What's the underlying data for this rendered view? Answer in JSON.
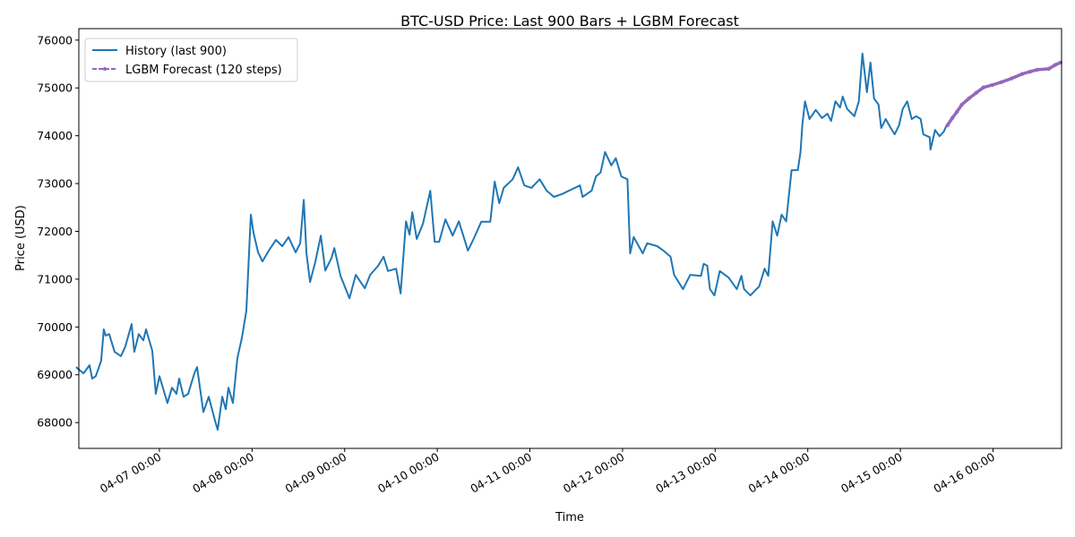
{
  "chart_data": {
    "type": "line",
    "title": "BTC-USD Price: Last 900 Bars + LGBM Forecast",
    "xlabel": "Time",
    "ylabel": "Price (USD)",
    "x_unit": "days since 04-07 00:00",
    "xlim": [
      -0.87,
      9.74
    ],
    "ylim": [
      67460,
      76240
    ],
    "grid": false,
    "legend_position": "top-left",
    "x_ticks": [
      {
        "value": 0,
        "label": "04-07 00:00"
      },
      {
        "value": 1,
        "label": "04-08 00:00"
      },
      {
        "value": 2,
        "label": "04-09 00:00"
      },
      {
        "value": 3,
        "label": "04-10 00:00"
      },
      {
        "value": 4,
        "label": "04-11 00:00"
      },
      {
        "value": 5,
        "label": "04-12 00:00"
      },
      {
        "value": 6,
        "label": "04-13 00:00"
      },
      {
        "value": 7,
        "label": "04-14 00:00"
      },
      {
        "value": 8,
        "label": "04-15 00:00"
      },
      {
        "value": 9,
        "label": "04-16 00:00"
      }
    ],
    "y_ticks": [
      {
        "value": 68000,
        "label": "68000"
      },
      {
        "value": 69000,
        "label": "69000"
      },
      {
        "value": 70000,
        "label": "70000"
      },
      {
        "value": 71000,
        "label": "71000"
      },
      {
        "value": 72000,
        "label": "72000"
      },
      {
        "value": 73000,
        "label": "73000"
      },
      {
        "value": 74000,
        "label": "74000"
      },
      {
        "value": 75000,
        "label": "75000"
      },
      {
        "value": 76000,
        "label": "76000"
      }
    ],
    "series": [
      {
        "name": "History (last 900)",
        "color": "#1f77b4",
        "style": "solid",
        "points": [
          [
            -0.9,
            69160
          ],
          [
            -0.82,
            69030
          ],
          [
            -0.755,
            69200
          ],
          [
            -0.726,
            68920
          ],
          [
            -0.687,
            68970
          ],
          [
            -0.629,
            69290
          ],
          [
            -0.6,
            69950
          ],
          [
            -0.581,
            69820
          ],
          [
            -0.542,
            69850
          ],
          [
            -0.484,
            69480
          ],
          [
            -0.416,
            69390
          ],
          [
            -0.368,
            69590
          ],
          [
            -0.3,
            70060
          ],
          [
            -0.271,
            69480
          ],
          [
            -0.223,
            69850
          ],
          [
            -0.174,
            69720
          ],
          [
            -0.145,
            69950
          ],
          [
            -0.077,
            69500
          ],
          [
            -0.039,
            68600
          ],
          [
            0,
            68970
          ],
          [
            0.048,
            68660
          ],
          [
            0.087,
            68410
          ],
          [
            0.136,
            68730
          ],
          [
            0.184,
            68600
          ],
          [
            0.213,
            68920
          ],
          [
            0.261,
            68540
          ],
          [
            0.31,
            68600
          ],
          [
            0.378,
            69030
          ],
          [
            0.407,
            69160
          ],
          [
            0.474,
            68220
          ],
          [
            0.532,
            68540
          ],
          [
            0.6,
            68040
          ],
          [
            0.629,
            67850
          ],
          [
            0.678,
            68540
          ],
          [
            0.716,
            68280
          ],
          [
            0.745,
            68730
          ],
          [
            0.794,
            68410
          ],
          [
            0.842,
            69350
          ],
          [
            0.891,
            69780
          ],
          [
            0.939,
            70340
          ],
          [
            0.987,
            72350
          ],
          [
            1.016,
            71970
          ],
          [
            1.065,
            71560
          ],
          [
            1.113,
            71370
          ],
          [
            1.181,
            71600
          ],
          [
            1.258,
            71820
          ],
          [
            1.326,
            71690
          ],
          [
            1.394,
            71880
          ],
          [
            1.471,
            71560
          ],
          [
            1.52,
            71750
          ],
          [
            1.559,
            72660
          ],
          [
            1.588,
            71540
          ],
          [
            1.626,
            70940
          ],
          [
            1.684,
            71370
          ],
          [
            1.742,
            71910
          ],
          [
            1.791,
            71180
          ],
          [
            1.859,
            71450
          ],
          [
            1.888,
            71650
          ],
          [
            1.955,
            71070
          ],
          [
            2.052,
            70600
          ],
          [
            2.12,
            71090
          ],
          [
            2.217,
            70810
          ],
          [
            2.275,
            71090
          ],
          [
            2.362,
            71280
          ],
          [
            2.42,
            71470
          ],
          [
            2.468,
            71170
          ],
          [
            2.556,
            71220
          ],
          [
            2.604,
            70700
          ],
          [
            2.662,
            72210
          ],
          [
            2.701,
            71930
          ],
          [
            2.73,
            72400
          ],
          [
            2.778,
            71840
          ],
          [
            2.846,
            72160
          ],
          [
            2.924,
            72850
          ],
          [
            2.972,
            71780
          ],
          [
            3.02,
            71780
          ],
          [
            3.088,
            72250
          ],
          [
            3.166,
            71910
          ],
          [
            3.233,
            72210
          ],
          [
            3.33,
            71600
          ],
          [
            3.388,
            71820
          ],
          [
            3.475,
            72200
          ],
          [
            3.572,
            72200
          ],
          [
            3.62,
            73040
          ],
          [
            3.669,
            72590
          ],
          [
            3.717,
            72910
          ],
          [
            3.814,
            73090
          ],
          [
            3.872,
            73340
          ],
          [
            3.94,
            72960
          ],
          [
            4.017,
            72910
          ],
          [
            4.105,
            73090
          ],
          [
            4.182,
            72850
          ],
          [
            4.259,
            72720
          ],
          [
            4.347,
            72780
          ],
          [
            4.443,
            72870
          ],
          [
            4.54,
            72960
          ],
          [
            4.569,
            72720
          ],
          [
            4.666,
            72850
          ],
          [
            4.714,
            73150
          ],
          [
            4.763,
            73230
          ],
          [
            4.811,
            73660
          ],
          [
            4.879,
            73380
          ],
          [
            4.927,
            73530
          ],
          [
            4.986,
            73150
          ],
          [
            5.053,
            73090
          ],
          [
            5.082,
            71540
          ],
          [
            5.121,
            71880
          ],
          [
            5.218,
            71540
          ],
          [
            5.266,
            71750
          ],
          [
            5.373,
            71690
          ],
          [
            5.44,
            71600
          ],
          [
            5.518,
            71470
          ],
          [
            5.557,
            71090
          ],
          [
            5.653,
            70790
          ],
          [
            5.731,
            71090
          ],
          [
            5.847,
            71070
          ],
          [
            5.876,
            71320
          ],
          [
            5.915,
            71280
          ],
          [
            5.944,
            70790
          ],
          [
            5.992,
            70660
          ],
          [
            6.05,
            71170
          ],
          [
            6.147,
            71030
          ],
          [
            6.234,
            70790
          ],
          [
            6.283,
            71070
          ],
          [
            6.312,
            70790
          ],
          [
            6.38,
            70660
          ],
          [
            6.476,
            70850
          ],
          [
            6.534,
            71220
          ],
          [
            6.573,
            71070
          ],
          [
            6.621,
            72210
          ],
          [
            6.67,
            71910
          ],
          [
            6.718,
            72350
          ],
          [
            6.767,
            72210
          ],
          [
            6.825,
            73280
          ],
          [
            6.893,
            73280
          ],
          [
            6.922,
            73660
          ],
          [
            6.941,
            74220
          ],
          [
            6.97,
            74720
          ],
          [
            7.018,
            74350
          ],
          [
            7.086,
            74540
          ],
          [
            7.154,
            74370
          ],
          [
            7.212,
            74460
          ],
          [
            7.251,
            74310
          ],
          [
            7.299,
            74720
          ],
          [
            7.348,
            74590
          ],
          [
            7.377,
            74820
          ],
          [
            7.425,
            74560
          ],
          [
            7.503,
            74410
          ],
          [
            7.551,
            74720
          ],
          [
            7.59,
            75720
          ],
          [
            7.638,
            74910
          ],
          [
            7.677,
            75530
          ],
          [
            7.716,
            74780
          ],
          [
            7.764,
            74650
          ],
          [
            7.793,
            74160
          ],
          [
            7.841,
            74350
          ],
          [
            7.89,
            74180
          ],
          [
            7.938,
            74030
          ],
          [
            7.986,
            74220
          ],
          [
            8.025,
            74560
          ],
          [
            8.074,
            74720
          ],
          [
            8.122,
            74350
          ],
          [
            8.17,
            74410
          ],
          [
            8.219,
            74350
          ],
          [
            8.248,
            74030
          ],
          [
            8.316,
            73970
          ],
          [
            8.325,
            73710
          ],
          [
            8.374,
            74120
          ],
          [
            8.422,
            73990
          ],
          [
            8.47,
            74090
          ],
          [
            8.499,
            74220
          ]
        ]
      },
      {
        "name": "LGBM Forecast (120 steps)",
        "color": "#9467bd",
        "style": "dashed-dots",
        "points": [
          [
            8.509,
            74220
          ],
          [
            8.56,
            74370
          ],
          [
            8.61,
            74500
          ],
          [
            8.664,
            74650
          ],
          [
            8.74,
            74780
          ],
          [
            8.82,
            74900
          ],
          [
            8.897,
            75010
          ],
          [
            8.99,
            75060
          ],
          [
            9.09,
            75120
          ],
          [
            9.2,
            75200
          ],
          [
            9.313,
            75290
          ],
          [
            9.4,
            75340
          ],
          [
            9.477,
            75380
          ],
          [
            9.603,
            75400
          ],
          [
            9.67,
            75480
          ],
          [
            9.729,
            75530
          ]
        ]
      }
    ]
  }
}
